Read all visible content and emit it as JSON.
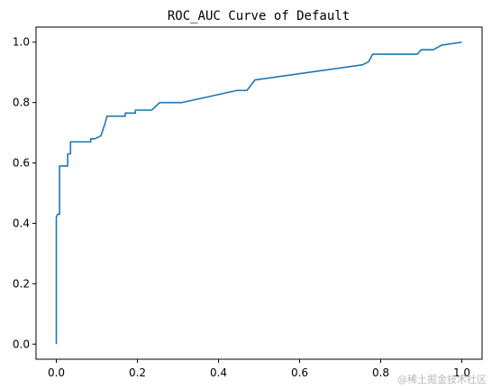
{
  "chart_data": {
    "type": "line",
    "title": "ROC_AUC Curve of Default",
    "xlabel": "",
    "ylabel": "",
    "xlim": [
      -0.05,
      1.05
    ],
    "ylim": [
      -0.05,
      1.05
    ],
    "x_ticks": [
      0.0,
      0.2,
      0.4,
      0.6,
      0.8,
      1.0
    ],
    "x_tick_labels": [
      "0.0",
      "0.2",
      "0.4",
      "0.6",
      "0.8",
      "1.0"
    ],
    "y_ticks": [
      0.0,
      0.2,
      0.4,
      0.6,
      0.8,
      1.0
    ],
    "y_tick_labels": [
      "0.0",
      "0.2",
      "0.4",
      "0.6",
      "0.8",
      "1.0"
    ],
    "grid": false,
    "series": [
      {
        "color": "#1f77b4",
        "x": [
          0.0,
          0.0,
          0.003,
          0.008,
          0.008,
          0.028,
          0.028,
          0.035,
          0.035,
          0.085,
          0.085,
          0.095,
          0.11,
          0.115,
          0.12,
          0.125,
          0.13,
          0.17,
          0.17,
          0.195,
          0.195,
          0.235,
          0.255,
          0.31,
          0.445,
          0.47,
          0.49,
          0.755,
          0.77,
          0.78,
          0.89,
          0.9,
          0.93,
          0.95,
          1.0
        ],
        "y": [
          0.0,
          0.42,
          0.43,
          0.43,
          0.59,
          0.59,
          0.63,
          0.63,
          0.67,
          0.67,
          0.68,
          0.68,
          0.69,
          0.71,
          0.73,
          0.755,
          0.755,
          0.755,
          0.765,
          0.765,
          0.775,
          0.775,
          0.8,
          0.8,
          0.84,
          0.84,
          0.875,
          0.925,
          0.935,
          0.96,
          0.96,
          0.975,
          0.975,
          0.99,
          1.0
        ]
      }
    ]
  },
  "watermark": "@稀土掘金技术社区"
}
